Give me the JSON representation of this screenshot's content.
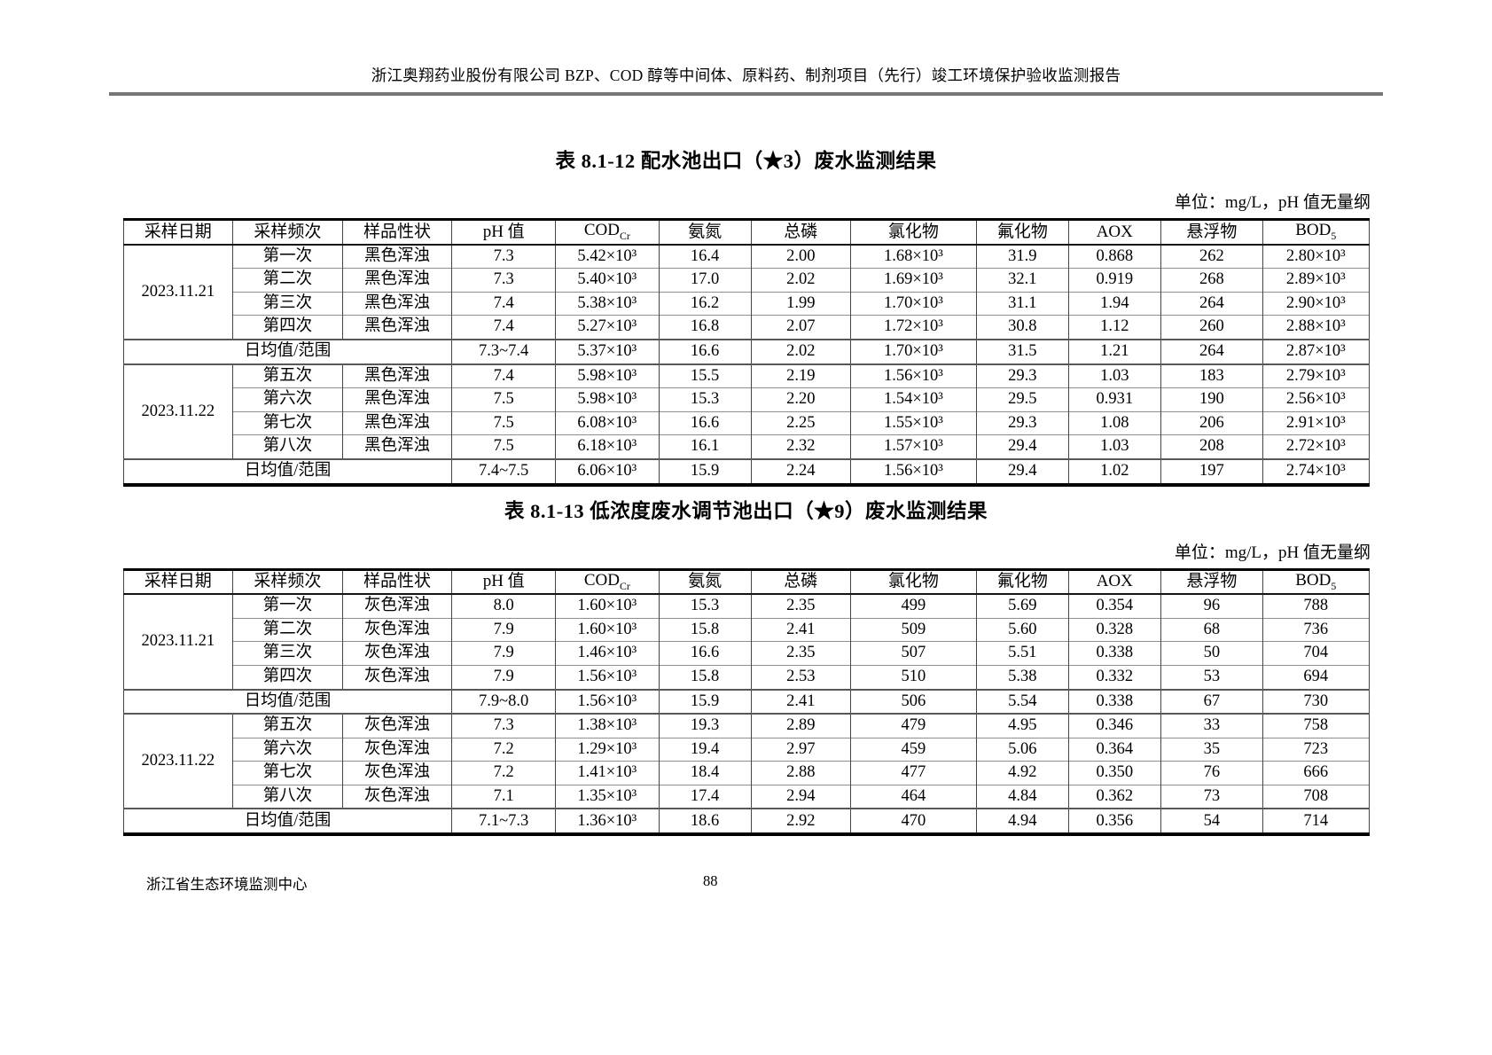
{
  "page": {
    "header_title": "浙江奥翔药业股份有限公司 BZP、COD 醇等中间体、原料药、制剂项目（先行）竣工环境保护验收监测报告",
    "footer_org": "浙江省生态环境监测中心",
    "page_number": "88"
  },
  "columns": [
    {
      "id": "sampling-date",
      "label": "采样日期"
    },
    {
      "id": "sampling-frequency",
      "label": "采样频次"
    },
    {
      "id": "sample-appearance",
      "label": "样品性状"
    },
    {
      "id": "ph",
      "label": "pH 值"
    },
    {
      "id": "cod",
      "label": "COD",
      "sub": "Cr"
    },
    {
      "id": "ammonia-nitrogen",
      "label": "氨氮"
    },
    {
      "id": "total-phosphorus",
      "label": "总磷"
    },
    {
      "id": "chloride",
      "label": "氯化物"
    },
    {
      "id": "fluoride",
      "label": "氟化物"
    },
    {
      "id": "aox",
      "label": "AOX"
    },
    {
      "id": "suspended-solids",
      "label": "悬浮物"
    },
    {
      "id": "bod",
      "label": "BOD",
      "sub": "5"
    }
  ],
  "tables": [
    {
      "title": "表 8.1-12  配水池出口（★3）废水监测结果",
      "unit_note": "单位：mg/L，pH 值无量纲",
      "daily_label": "日均值/范围",
      "groups": [
        {
          "date": "2023.11.21",
          "rows": [
            {
              "frequency": "第一次",
              "appearance": "黑色浑浊",
              "values": [
                "7.3",
                "5.42×10³",
                "16.4",
                "2.00",
                "1.68×10³",
                "31.9",
                "0.868",
                "262",
                "2.80×10³"
              ]
            },
            {
              "frequency": "第二次",
              "appearance": "黑色浑浊",
              "values": [
                "7.3",
                "5.40×10³",
                "17.0",
                "2.02",
                "1.69×10³",
                "32.1",
                "0.919",
                "268",
                "2.89×10³"
              ]
            },
            {
              "frequency": "第三次",
              "appearance": "黑色浑浊",
              "values": [
                "7.4",
                "5.38×10³",
                "16.2",
                "1.99",
                "1.70×10³",
                "31.1",
                "1.94",
                "264",
                "2.90×10³"
              ]
            },
            {
              "frequency": "第四次",
              "appearance": "黑色浑浊",
              "values": [
                "7.4",
                "5.27×10³",
                "16.8",
                "2.07",
                "1.72×10³",
                "30.8",
                "1.12",
                "260",
                "2.88×10³"
              ]
            }
          ],
          "daily": [
            "7.3~7.4",
            "5.37×10³",
            "16.6",
            "2.02",
            "1.70×10³",
            "31.5",
            "1.21",
            "264",
            "2.87×10³"
          ]
        },
        {
          "date": "2023.11.22",
          "rows": [
            {
              "frequency": "第五次",
              "appearance": "黑色浑浊",
              "values": [
                "7.4",
                "5.98×10³",
                "15.5",
                "2.19",
                "1.56×10³",
                "29.3",
                "1.03",
                "183",
                "2.79×10³"
              ]
            },
            {
              "frequency": "第六次",
              "appearance": "黑色浑浊",
              "values": [
                "7.5",
                "5.98×10³",
                "15.3",
                "2.20",
                "1.54×10³",
                "29.5",
                "0.931",
                "190",
                "2.56×10³"
              ]
            },
            {
              "frequency": "第七次",
              "appearance": "黑色浑浊",
              "values": [
                "7.5",
                "6.08×10³",
                "16.6",
                "2.25",
                "1.55×10³",
                "29.3",
                "1.08",
                "206",
                "2.91×10³"
              ]
            },
            {
              "frequency": "第八次",
              "appearance": "黑色浑浊",
              "values": [
                "7.5",
                "6.18×10³",
                "16.1",
                "2.32",
                "1.57×10³",
                "29.4",
                "1.03",
                "208",
                "2.72×10³"
              ]
            }
          ],
          "daily": [
            "7.4~7.5",
            "6.06×10³",
            "15.9",
            "2.24",
            "1.56×10³",
            "29.4",
            "1.02",
            "197",
            "2.74×10³"
          ]
        }
      ]
    },
    {
      "title": "表 8.1-13  低浓度废水调节池出口（★9）废水监测结果",
      "unit_note": "单位：mg/L，pH 值无量纲",
      "daily_label": "日均值/范围",
      "groups": [
        {
          "date": "2023.11.21",
          "rows": [
            {
              "frequency": "第一次",
              "appearance": "灰色浑浊",
              "values": [
                "8.0",
                "1.60×10³",
                "15.3",
                "2.35",
                "499",
                "5.69",
                "0.354",
                "96",
                "788"
              ]
            },
            {
              "frequency": "第二次",
              "appearance": "灰色浑浊",
              "values": [
                "7.9",
                "1.60×10³",
                "15.8",
                "2.41",
                "509",
                "5.60",
                "0.328",
                "68",
                "736"
              ]
            },
            {
              "frequency": "第三次",
              "appearance": "灰色浑浊",
              "values": [
                "7.9",
                "1.46×10³",
                "16.6",
                "2.35",
                "507",
                "5.51",
                "0.338",
                "50",
                "704"
              ]
            },
            {
              "frequency": "第四次",
              "appearance": "灰色浑浊",
              "values": [
                "7.9",
                "1.56×10³",
                "15.8",
                "2.53",
                "510",
                "5.38",
                "0.332",
                "53",
                "694"
              ]
            }
          ],
          "daily": [
            "7.9~8.0",
            "1.56×10³",
            "15.9",
            "2.41",
            "506",
            "5.54",
            "0.338",
            "67",
            "730"
          ]
        },
        {
          "date": "2023.11.22",
          "rows": [
            {
              "frequency": "第五次",
              "appearance": "灰色浑浊",
              "values": [
                "7.3",
                "1.38×10³",
                "19.3",
                "2.89",
                "479",
                "4.95",
                "0.346",
                "33",
                "758"
              ]
            },
            {
              "frequency": "第六次",
              "appearance": "灰色浑浊",
              "values": [
                "7.2",
                "1.29×10³",
                "19.4",
                "2.97",
                "459",
                "5.06",
                "0.364",
                "35",
                "723"
              ]
            },
            {
              "frequency": "第七次",
              "appearance": "灰色浑浊",
              "values": [
                "7.2",
                "1.41×10³",
                "18.4",
                "2.88",
                "477",
                "4.92",
                "0.350",
                "76",
                "666"
              ]
            },
            {
              "frequency": "第八次",
              "appearance": "灰色浑浊",
              "values": [
                "7.1",
                "1.35×10³",
                "17.4",
                "2.94",
                "464",
                "4.84",
                "0.362",
                "73",
                "708"
              ]
            }
          ],
          "daily": [
            "7.1~7.3",
            "1.36×10³",
            "18.6",
            "2.92",
            "470",
            "4.94",
            "0.356",
            "54",
            "714"
          ]
        }
      ]
    }
  ]
}
